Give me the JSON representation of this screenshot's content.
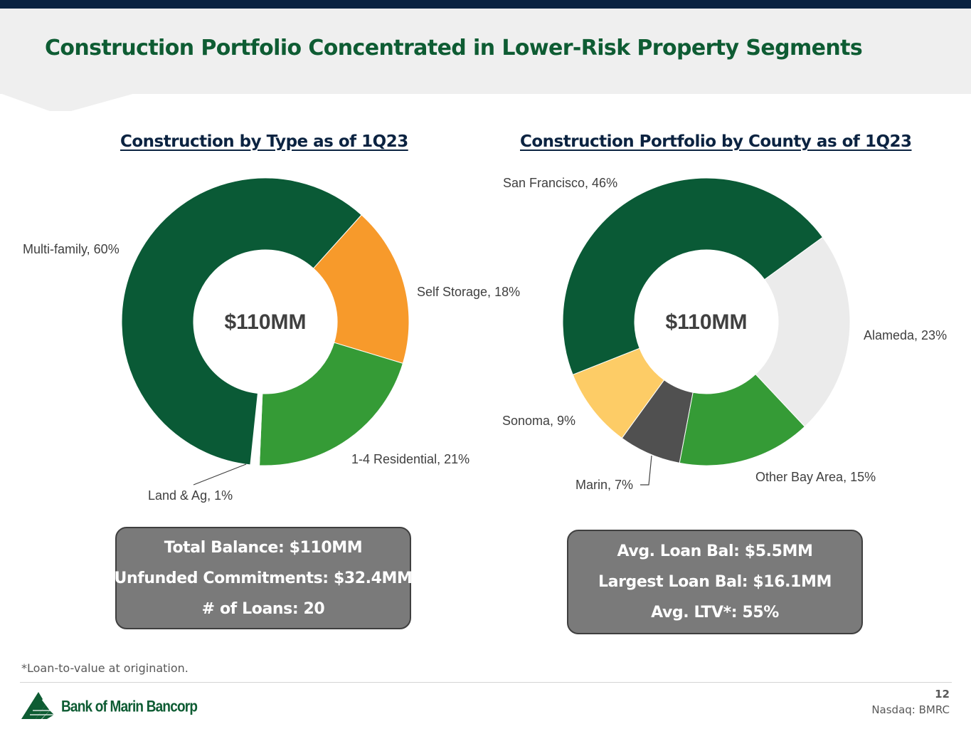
{
  "slide": {
    "title": "Construction Portfolio Concentrated in Lower-Risk Property Segments",
    "page_number": "12",
    "ticker": "Nasdaq: BMRC",
    "footnote": "*Loan-to-value at origination.",
    "logo_text": "Bank of Marin Bancorp"
  },
  "colors": {
    "navy": "#0b2341",
    "brand_green": "#0e5c33",
    "dark_green": "#0a5a36",
    "orange": "#f79a2b",
    "mid_green": "#359b36",
    "light_gray": "#ebebeb",
    "yellow": "#fdcc66",
    "dark_gray": "#505050"
  },
  "chart_data": [
    {
      "type": "donut",
      "title": "Construction by Type as of 1Q23",
      "center_label": "$110MM",
      "slices": [
        {
          "name": "Self Storage",
          "value": 18,
          "label": "Self Storage, 18%",
          "color": "#f79a2b"
        },
        {
          "name": "1-4 Residential",
          "value": 21,
          "label": "1-4 Residential, 21%",
          "color": "#359b36"
        },
        {
          "name": "Land & Ag",
          "value": 1,
          "label": "Land & Ag, 1%",
          "color": "#ffffff"
        },
        {
          "name": "Multi-family",
          "value": 60,
          "label": "Multi-family, 60%",
          "color": "#0a5a36"
        }
      ]
    },
    {
      "type": "donut",
      "title": "Construction Portfolio by County as of 1Q23",
      "center_label": "$110MM",
      "slices": [
        {
          "name": "Alameda",
          "value": 23,
          "label": "Alameda, 23%",
          "color": "#ebebeb"
        },
        {
          "name": "Other Bay Area",
          "value": 15,
          "label": "Other Bay Area, 15%",
          "color": "#359b36"
        },
        {
          "name": "Marin",
          "value": 7,
          "label": "Marin, 7%",
          "color": "#505050"
        },
        {
          "name": "Sonoma",
          "value": 9,
          "label": "Sonoma, 9%",
          "color": "#fdcc66"
        },
        {
          "name": "San Francisco",
          "value": 46,
          "label": "San Francisco, 46%",
          "color": "#0a5a36"
        }
      ]
    }
  ],
  "stats_left": [
    "Total Balance: $110MM",
    "Unfunded Commitments: $32.4MM",
    "# of Loans: 20"
  ],
  "stats_right": [
    "Avg. Loan Bal: $5.5MM",
    "Largest Loan Bal: $16.1MM",
    "Avg. LTV*: 55%"
  ]
}
